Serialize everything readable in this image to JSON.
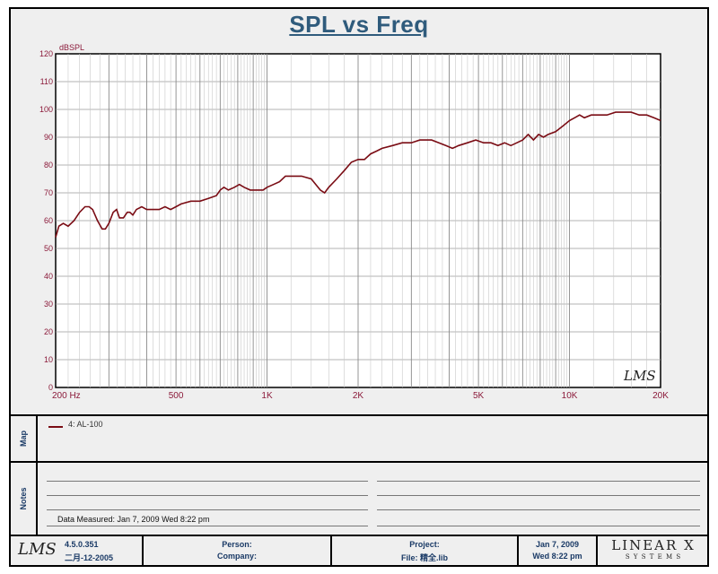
{
  "chart_data": {
    "type": "line",
    "title": "SPL vs Freq",
    "ylabel": "dBSPL",
    "xlabel": "",
    "xscale": "log",
    "xlim": [
      200,
      20000
    ],
    "ylim": [
      0,
      120
    ],
    "grid": true,
    "y_ticks": [
      "0",
      "10",
      "20",
      "30",
      "40",
      "50",
      "60",
      "70",
      "80",
      "90",
      "100",
      "110",
      "120"
    ],
    "x_ticks": [
      {
        "label": "200  Hz",
        "value": 200
      },
      {
        "label": "500",
        "value": 500
      },
      {
        "label": "1K",
        "value": 1000
      },
      {
        "label": "2K",
        "value": 2000
      },
      {
        "label": "5K",
        "value": 5000
      },
      {
        "label": "10K",
        "value": 10000
      },
      {
        "label": "20K",
        "value": 20000
      }
    ],
    "series": [
      {
        "name": "4: AL-100",
        "color": "#7a0c14",
        "points": [
          [
            200,
            54
          ],
          [
            205,
            58
          ],
          [
            212,
            59
          ],
          [
            220,
            58
          ],
          [
            230,
            60
          ],
          [
            240,
            63
          ],
          [
            250,
            65
          ],
          [
            258,
            65
          ],
          [
            265,
            64
          ],
          [
            275,
            60
          ],
          [
            285,
            57
          ],
          [
            292,
            57
          ],
          [
            300,
            59
          ],
          [
            310,
            63
          ],
          [
            318,
            64
          ],
          [
            325,
            61
          ],
          [
            335,
            61
          ],
          [
            345,
            63
          ],
          [
            352,
            63
          ],
          [
            360,
            62
          ],
          [
            370,
            64
          ],
          [
            385,
            65
          ],
          [
            400,
            64
          ],
          [
            420,
            64
          ],
          [
            440,
            64
          ],
          [
            460,
            65
          ],
          [
            480,
            64
          ],
          [
            500,
            65
          ],
          [
            520,
            66
          ],
          [
            560,
            67
          ],
          [
            600,
            67
          ],
          [
            640,
            68
          ],
          [
            680,
            69
          ],
          [
            700,
            71
          ],
          [
            720,
            72
          ],
          [
            745,
            71
          ],
          [
            780,
            72
          ],
          [
            810,
            73
          ],
          [
            840,
            72
          ],
          [
            880,
            71
          ],
          [
            930,
            71
          ],
          [
            970,
            71
          ],
          [
            1000,
            72
          ],
          [
            1050,
            73
          ],
          [
            1100,
            74
          ],
          [
            1150,
            76
          ],
          [
            1200,
            76
          ],
          [
            1300,
            76
          ],
          [
            1400,
            75
          ],
          [
            1450,
            73
          ],
          [
            1500,
            71
          ],
          [
            1550,
            70
          ],
          [
            1600,
            72
          ],
          [
            1700,
            75
          ],
          [
            1800,
            78
          ],
          [
            1900,
            81
          ],
          [
            2000,
            82
          ],
          [
            2100,
            82
          ],
          [
            2200,
            84
          ],
          [
            2300,
            85
          ],
          [
            2400,
            86
          ],
          [
            2600,
            87
          ],
          [
            2800,
            88
          ],
          [
            3000,
            88
          ],
          [
            3200,
            89
          ],
          [
            3500,
            89
          ],
          [
            3700,
            88
          ],
          [
            3900,
            87
          ],
          [
            4100,
            86
          ],
          [
            4300,
            87
          ],
          [
            4600,
            88
          ],
          [
            4900,
            89
          ],
          [
            5200,
            88
          ],
          [
            5500,
            88
          ],
          [
            5800,
            87
          ],
          [
            6100,
            88
          ],
          [
            6400,
            87
          ],
          [
            6700,
            88
          ],
          [
            7000,
            89
          ],
          [
            7300,
            91
          ],
          [
            7600,
            89
          ],
          [
            7900,
            91
          ],
          [
            8200,
            90
          ],
          [
            8500,
            91
          ],
          [
            9000,
            92
          ],
          [
            9500,
            94
          ],
          [
            10000,
            96
          ],
          [
            10400,
            97
          ],
          [
            10800,
            98
          ],
          [
            11200,
            97
          ],
          [
            11800,
            98
          ],
          [
            12500,
            98
          ],
          [
            13300,
            98
          ],
          [
            14200,
            99
          ],
          [
            15000,
            99
          ],
          [
            16000,
            99
          ],
          [
            17000,
            98
          ],
          [
            18000,
            98
          ],
          [
            19000,
            97
          ],
          [
            20000,
            96
          ]
        ]
      }
    ]
  },
  "map_label": "Map",
  "notes_label": "Notes",
  "legend": {
    "label": "4: AL-100"
  },
  "notes": {
    "data_measured": "Data Measured: Jan  7, 2009  Wed  8:22 pm"
  },
  "watermark": "LMS",
  "footer": {
    "logo": "LMS",
    "version": "4.5.0.351",
    "build_date": "二月-12-2005",
    "person_label": "Person:",
    "company_label": "Company:",
    "project_label": "Project:",
    "file_label": "File: 精全.lib",
    "date": "Jan  7, 2009",
    "time": "Wed  8:22 pm",
    "brand": "LINEAR X",
    "brand_sub": "S Y S T E M S"
  }
}
